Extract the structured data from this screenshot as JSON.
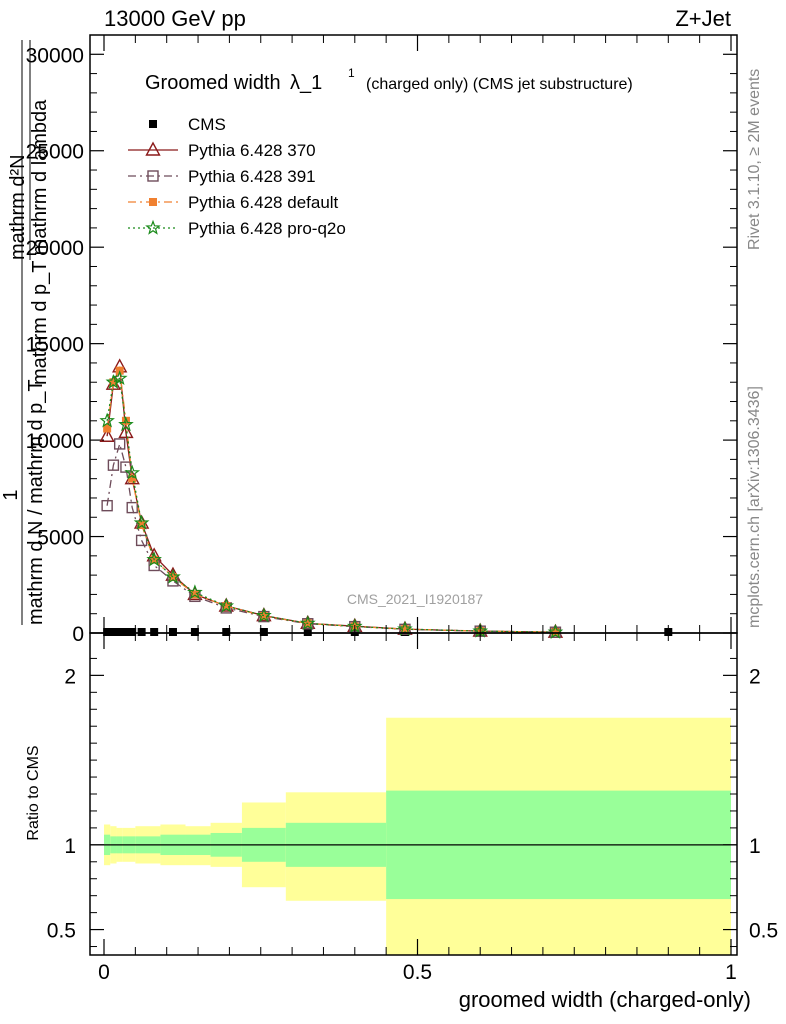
{
  "header": {
    "left_label": "13000 GeV pp",
    "right_label": "Z+Jet"
  },
  "side_labels": {
    "rivet": "Rivet 3.1.10, ≥ 2M events",
    "mcplots": "mcplots.cern.ch [arXiv:1306.3436]"
  },
  "watermark": "CMS_2021_I1920187",
  "chart_data": [
    {
      "type": "line",
      "title_main": "Groomed width",
      "title_symbol": "λ_1",
      "title_superscript": "1",
      "title_suffix": "(charged only) (CMS jet substructure)",
      "ylabel_num": "mathrm d²N",
      "ylabel_den": "mathrm d p_T mathrm d lambda",
      "ylabel_prefix_num": "1",
      "ylabel_prefix_den": "mathrm d N / mathrm d p_T",
      "xlim": [
        -0.02,
        1.0
      ],
      "ylim": [
        0,
        31000
      ],
      "yticks": [
        0,
        5000,
        10000,
        15000,
        20000,
        25000,
        30000
      ],
      "ytick_labels": [
        "0",
        "5000",
        "10000",
        "15000",
        "20000",
        "25000",
        "30000"
      ],
      "legend_position": "top-left",
      "series": [
        {
          "name": "CMS",
          "color": "#000000",
          "marker": "square",
          "x": [
            0.005,
            0.015,
            0.025,
            0.035,
            0.045,
            0.06,
            0.08,
            0.11,
            0.145,
            0.195,
            0.255,
            0.325,
            0.4,
            0.48,
            0.6,
            0.72,
            0.9
          ],
          "y": [
            0,
            0,
            0,
            0,
            0,
            0,
            0,
            0,
            0,
            0,
            0,
            0,
            0,
            0,
            0,
            0,
            0
          ]
        },
        {
          "name": "Pythia 6.428 370",
          "color": "#8b1a1a",
          "marker": "triangle",
          "dash": "",
          "x": [
            0.005,
            0.015,
            0.025,
            0.035,
            0.045,
            0.06,
            0.08,
            0.11,
            0.145,
            0.195,
            0.255,
            0.325,
            0.4,
            0.48,
            0.6,
            0.72
          ],
          "y": [
            10200,
            12900,
            13800,
            10400,
            8000,
            5700,
            4000,
            3000,
            2000,
            1400,
            900,
            500,
            350,
            200,
            100,
            40
          ]
        },
        {
          "name": "Pythia 6.428 391",
          "color": "#6e4c5a",
          "marker": "open-square",
          "dash": "8,4,2,4",
          "x": [
            0.005,
            0.015,
            0.025,
            0.035,
            0.045,
            0.06,
            0.08,
            0.11,
            0.145,
            0.195,
            0.255,
            0.325,
            0.4,
            0.48,
            0.6,
            0.72
          ],
          "y": [
            6600,
            8700,
            9800,
            8600,
            6500,
            4800,
            3500,
            2700,
            1900,
            1300,
            850,
            480,
            330,
            190,
            95,
            40
          ]
        },
        {
          "name": "Pythia 6.428 default",
          "color": "#f08030",
          "marker": "filled-square",
          "dash": "8,4,2,4",
          "x": [
            0.005,
            0.015,
            0.025,
            0.035,
            0.045,
            0.06,
            0.08,
            0.11,
            0.145,
            0.195,
            0.255,
            0.325,
            0.4,
            0.48,
            0.6,
            0.72
          ],
          "y": [
            10600,
            13000,
            13600,
            11000,
            8000,
            5600,
            3800,
            2900,
            2000,
            1400,
            880,
            500,
            340,
            200,
            100,
            40
          ]
        },
        {
          "name": "Pythia 6.428 pro-q2o",
          "color": "#1a8a1a",
          "marker": "star",
          "dash": "2,3",
          "x": [
            0.005,
            0.015,
            0.025,
            0.035,
            0.045,
            0.06,
            0.08,
            0.11,
            0.145,
            0.195,
            0.255,
            0.325,
            0.4,
            0.48,
            0.6,
            0.72
          ],
          "y": [
            11000,
            13000,
            13200,
            10800,
            8300,
            5700,
            3800,
            2900,
            2100,
            1400,
            900,
            500,
            340,
            200,
            100,
            40
          ]
        }
      ]
    },
    {
      "type": "area",
      "ylabel": "Ratio to CMS",
      "xlabel": "groomed width (charged-only)",
      "xlim": [
        -0.02,
        1.0
      ],
      "ylim": [
        0.35,
        2.25
      ],
      "yticks": [
        0.5,
        1,
        2
      ],
      "ytick_labels": [
        "0.5",
        "1",
        "2"
      ],
      "xticks": [
        0,
        0.5,
        1
      ],
      "xtick_labels": [
        "0",
        "0.5",
        "1"
      ],
      "reference_line": 1.0,
      "bins": [
        {
          "x0": 0.0,
          "x1": 0.01,
          "stat_lo": 0.94,
          "stat_hi": 1.06,
          "tot_lo": 0.88,
          "tot_hi": 1.12
        },
        {
          "x0": 0.01,
          "x1": 0.02,
          "stat_lo": 0.95,
          "stat_hi": 1.05,
          "tot_lo": 0.89,
          "tot_hi": 1.11
        },
        {
          "x0": 0.02,
          "x1": 0.03,
          "stat_lo": 0.95,
          "stat_hi": 1.05,
          "tot_lo": 0.9,
          "tot_hi": 1.1
        },
        {
          "x0": 0.03,
          "x1": 0.05,
          "stat_lo": 0.95,
          "stat_hi": 1.05,
          "tot_lo": 0.9,
          "tot_hi": 1.1
        },
        {
          "x0": 0.05,
          "x1": 0.09,
          "stat_lo": 0.95,
          "stat_hi": 1.05,
          "tot_lo": 0.89,
          "tot_hi": 1.11
        },
        {
          "x0": 0.09,
          "x1": 0.13,
          "stat_lo": 0.94,
          "stat_hi": 1.06,
          "tot_lo": 0.88,
          "tot_hi": 1.12
        },
        {
          "x0": 0.13,
          "x1": 0.17,
          "stat_lo": 0.94,
          "stat_hi": 1.06,
          "tot_lo": 0.88,
          "tot_hi": 1.11
        },
        {
          "x0": 0.17,
          "x1": 0.22,
          "stat_lo": 0.93,
          "stat_hi": 1.07,
          "tot_lo": 0.87,
          "tot_hi": 1.13
        },
        {
          "x0": 0.22,
          "x1": 0.29,
          "stat_lo": 0.9,
          "stat_hi": 1.1,
          "tot_lo": 0.75,
          "tot_hi": 1.25
        },
        {
          "x0": 0.29,
          "x1": 0.45,
          "stat_lo": 0.87,
          "stat_hi": 1.13,
          "tot_lo": 0.67,
          "tot_hi": 1.31
        },
        {
          "x0": 0.45,
          "x1": 1.0,
          "stat_lo": 0.68,
          "stat_hi": 1.32,
          "tot_lo": 0.35,
          "tot_hi": 1.75
        }
      ]
    }
  ]
}
